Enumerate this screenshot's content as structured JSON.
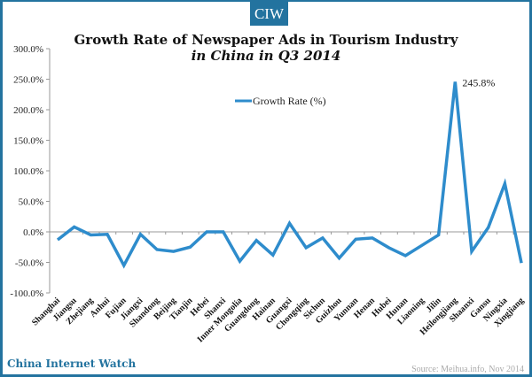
{
  "badge": "CIW",
  "title_line1": "Growth Rate of Newspaper Ads in Tourism Industry",
  "title_line2": "in China in Q3 2014",
  "brand": "China Internet Watch",
  "source": "Source: Meihua.info, Nov 2014",
  "colors": {
    "line": "#2e8ccc",
    "frame": "#23739f",
    "brand": "#23739f"
  },
  "chart_data": {
    "type": "line",
    "title": "Growth Rate of Newspaper Ads in Tourism Industry in China in Q3 2014",
    "xlabel": "",
    "ylabel": "",
    "ylim": [
      -100,
      300
    ],
    "yticks": [
      -100,
      -50,
      0,
      50,
      100,
      150,
      200,
      250,
      300
    ],
    "ytick_labels": [
      "-100.0%",
      "-50.0%",
      "0.0%",
      "50.0%",
      "100.0%",
      "150.0%",
      "200.0%",
      "250.0%",
      "300.0%"
    ],
    "grid": false,
    "legend": {
      "position": "top-center",
      "entries": [
        "Growth Rate (%)"
      ]
    },
    "categories": [
      "Shanghai",
      "Jiangsu",
      "Zhejiang",
      "Anhui",
      "Fujian",
      "Jiangxi",
      "Shandong",
      "Beijing",
      "Tianjin",
      "Hebei",
      "Shanxi",
      "Inner Mongolia",
      "Guangdong",
      "Hainan",
      "Guangxi",
      "Chongqing",
      "Sichun",
      "Guizhou",
      "Yunnan",
      "Henan",
      "Hubei",
      "Hunan",
      "Liaoning",
      "Jilin",
      "Heilongjiang",
      "Shaanxi",
      "Gansu",
      "Ningxia",
      "Xingjiang"
    ],
    "series": [
      {
        "name": "Growth Rate (%)",
        "values": [
          -13,
          8,
          -5,
          -4,
          -55,
          -4,
          -29,
          -32,
          -25,
          0,
          0,
          -48,
          -14,
          -38,
          14,
          -26,
          -10,
          -43,
          -12,
          -10,
          -26,
          -39,
          -22,
          -5,
          245.8,
          -32,
          7,
          79,
          -51
        ]
      }
    ],
    "annotations": [
      {
        "category": "Heilongjiang",
        "text": "245.8%"
      }
    ]
  }
}
